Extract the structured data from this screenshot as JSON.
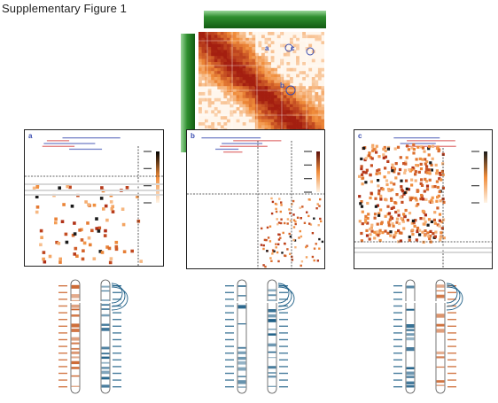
{
  "figure": {
    "title": "Supplementary Figure 1"
  },
  "overview": {
    "region_labels": [
      "a",
      "b",
      "c"
    ]
  },
  "panels": [
    {
      "letter": "a",
      "ideogram_colors": [
        "#c85a1e",
        "#1d5e86"
      ]
    },
    {
      "letter": "b",
      "ideogram_colors": [
        "#1d5e86",
        "#1d5e86"
      ]
    },
    {
      "letter": "c",
      "ideogram_colors": [
        "#1d5e86",
        "#c85a1e"
      ]
    }
  ],
  "colors": {
    "heat_low": "#fff4e6",
    "heat_mid": "#f08c3a",
    "heat_high": "#a41f10",
    "track_green": "#2f8f2f",
    "frame": "#222222",
    "label_blue": "#3a4db0",
    "label_red": "#d64040"
  }
}
